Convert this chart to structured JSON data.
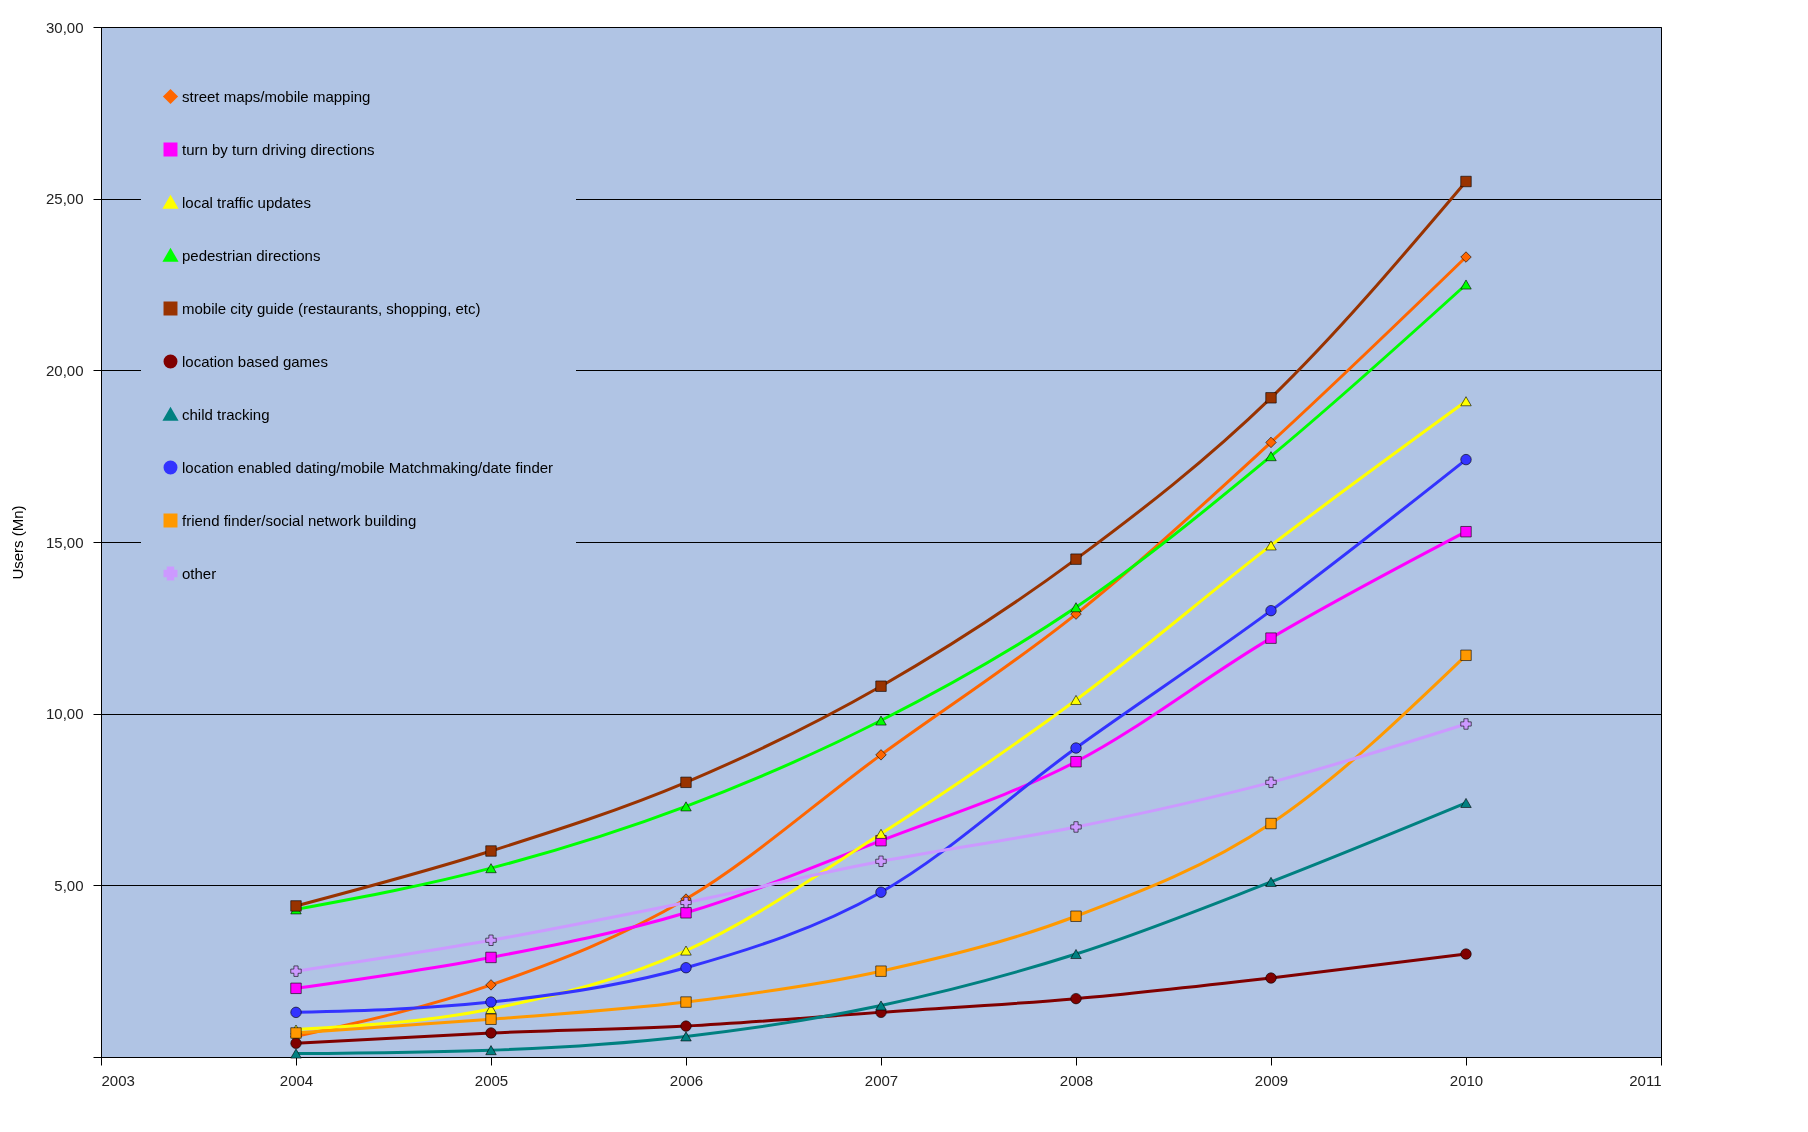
{
  "chart_data": {
    "type": "line",
    "ylabel": "Users (Mn)",
    "x": [
      2004,
      2005,
      2006,
      2007,
      2008,
      2009,
      2010
    ],
    "xlim": [
      2003,
      2011
    ],
    "xticks": [
      2003,
      2004,
      2005,
      2006,
      2007,
      2008,
      2009,
      2010,
      2011
    ],
    "ylim": [
      0,
      30
    ],
    "yticks": [
      {
        "value": 0,
        "label": null
      },
      {
        "value": 5,
        "label": "5,00"
      },
      {
        "value": 10,
        "label": "10,00"
      },
      {
        "value": 15,
        "label": "15,00"
      },
      {
        "value": 20,
        "label": "20,00"
      },
      {
        "value": 25,
        "label": "25,00"
      },
      {
        "value": 30,
        "label": "30,00"
      }
    ],
    "grid": "y",
    "legend": "top left",
    "line_style": "solid",
    "series": [
      {
        "name": "street maps/mobile mapping",
        "color": "#ff6600",
        "marker": "diamond",
        "values": [
          0.6,
          2.1,
          4.6,
          8.8,
          12.9,
          17.9,
          23.3
        ]
      },
      {
        "name": "turn by turn driving directions",
        "color": "#ff00ff",
        "marker": "square",
        "values": [
          2.0,
          2.9,
          4.2,
          6.3,
          8.6,
          12.2,
          15.3
        ]
      },
      {
        "name": "local traffic updates",
        "color": "#ffff00",
        "marker": "triangle",
        "values": [
          0.8,
          1.4,
          3.1,
          6.5,
          10.4,
          14.9,
          19.1
        ]
      },
      {
        "name": "pedestrian directions",
        "color": "#00ff00",
        "marker": "triangle",
        "values": [
          4.3,
          5.5,
          7.3,
          9.8,
          13.1,
          17.5,
          22.5
        ]
      },
      {
        "name": "mobile city guide (restaurants, shopping, etc)",
        "color": "#993300",
        "marker": "square",
        "values": [
          4.4,
          6.0,
          8.0,
          10.8,
          14.5,
          19.2,
          25.5
        ]
      },
      {
        "name": "location based games",
        "color": "#800000",
        "marker": "circle",
        "values": [
          0.4,
          0.7,
          0.9,
          1.3,
          1.7,
          2.3,
          3.0
        ]
      },
      {
        "name": "child tracking",
        "color": "#008080",
        "marker": "triangle",
        "values": [
          0.1,
          0.2,
          0.6,
          1.5,
          3.0,
          5.1,
          7.4
        ]
      },
      {
        "name": "location enabled dating/mobile Matchmaking/date finder",
        "color": "#3333ff",
        "marker": "circle",
        "values": [
          1.3,
          1.6,
          2.6,
          4.8,
          9.0,
          13.0,
          17.4
        ]
      },
      {
        "name": "friend finder/social network building",
        "color": "#ff9900",
        "marker": "square",
        "values": [
          0.7,
          1.1,
          1.6,
          2.5,
          4.1,
          6.8,
          11.7
        ]
      },
      {
        "name": "other",
        "color": "#cc99ff",
        "marker": "cross",
        "values": [
          2.5,
          3.4,
          4.5,
          5.7,
          6.7,
          8.0,
          9.7
        ]
      }
    ]
  }
}
